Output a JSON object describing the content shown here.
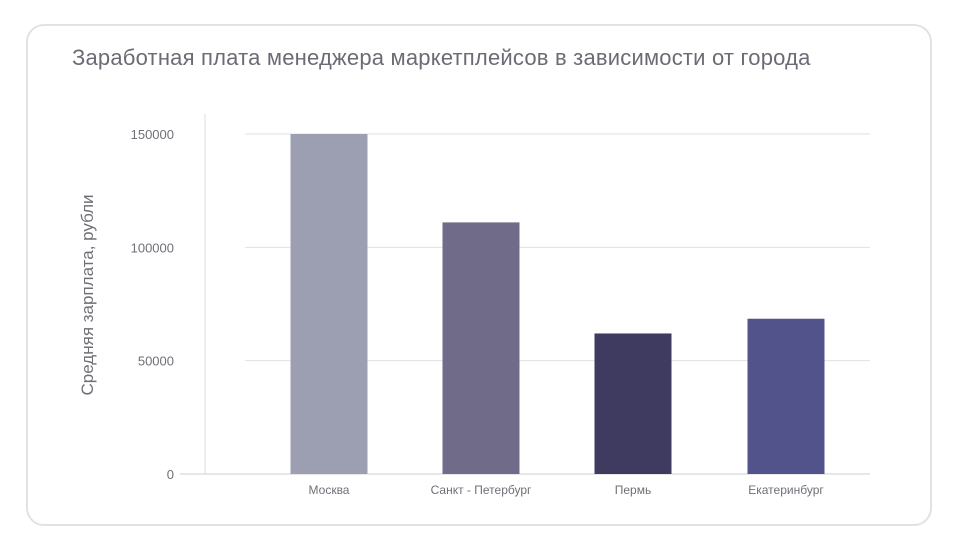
{
  "chart_data": {
    "type": "bar",
    "title": "Заработная плата менеджера маркетплейсов в зависимости от города",
    "ylabel": "Средняя зарплата, рубли",
    "xlabel": "",
    "categories": [
      "Москва",
      "Санкт - Петербург",
      "Пермь",
      "Екатеринбург"
    ],
    "values": [
      150000,
      111000,
      62000,
      68500
    ],
    "colors": [
      "#9c9fb2",
      "#716b8a",
      "#3f3b60",
      "#52538a"
    ],
    "ylim": [
      0,
      150000
    ],
    "yticks": [
      0,
      50000,
      100000,
      150000
    ],
    "ytick_labels": [
      "0",
      "50000",
      "100000",
      "150000"
    ],
    "grid": true,
    "legend": "none"
  }
}
